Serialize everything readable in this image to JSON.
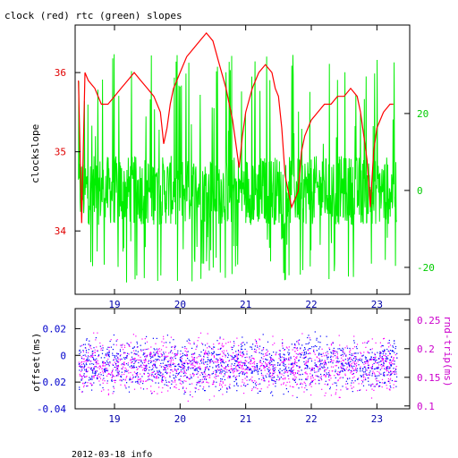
{
  "chart_data": [
    {
      "type": "line",
      "title": "clock (red) rtc (green) slopes",
      "xlabel": "",
      "ylabel": "clockslope",
      "xlim": [
        18.4,
        23.5
      ],
      "x_ticks": [
        "19",
        "20",
        "21",
        "22",
        "23"
      ],
      "y_left": {
        "lim": [
          33.2,
          36.6
        ],
        "ticks": [
          "34",
          "35",
          "36"
        ],
        "color": "#e00000"
      },
      "y_right": {
        "lim": [
          -27,
          43
        ],
        "ticks": [
          "-20",
          "0",
          "20"
        ],
        "color": "#00cc00"
      },
      "series": [
        {
          "color": "#ff0000",
          "axis": "left",
          "x": [
            18.45,
            18.5,
            18.55,
            18.6,
            18.7,
            18.8,
            18.9,
            19.0,
            19.1,
            19.2,
            19.3,
            19.4,
            19.5,
            19.6,
            19.7,
            19.75,
            19.8,
            19.85,
            19.9,
            19.95,
            20.0,
            20.1,
            20.2,
            20.3,
            20.4,
            20.5,
            20.6,
            20.7,
            20.75,
            20.8,
            20.85,
            20.9,
            20.95,
            21.0,
            21.1,
            21.2,
            21.3,
            21.4,
            21.45,
            21.5,
            21.55,
            21.6,
            21.7,
            21.8,
            21.85,
            21.9,
            21.95,
            22.0,
            22.1,
            22.2,
            22.3,
            22.4,
            22.5,
            22.6,
            22.7,
            22.75,
            22.8,
            22.85,
            22.9,
            22.95,
            23.0,
            23.1,
            23.2,
            23.25
          ],
          "y": [
            35.9,
            34.1,
            36.0,
            35.9,
            35.8,
            35.6,
            35.6,
            35.7,
            35.8,
            35.9,
            36.0,
            35.9,
            35.8,
            35.7,
            35.5,
            35.1,
            35.3,
            35.6,
            35.8,
            35.9,
            36.0,
            36.2,
            36.3,
            36.4,
            36.5,
            36.4,
            36.1,
            35.8,
            35.6,
            35.4,
            35.1,
            34.8,
            35.2,
            35.5,
            35.8,
            36.0,
            36.1,
            36.0,
            35.8,
            35.7,
            35.3,
            34.7,
            34.3,
            34.5,
            35.0,
            35.2,
            35.3,
            35.4,
            35.5,
            35.6,
            35.6,
            35.7,
            35.7,
            35.8,
            35.7,
            35.5,
            35.2,
            34.9,
            34.3,
            35.0,
            35.3,
            35.5,
            35.6,
            35.6
          ]
        },
        {
          "color": "#00ee00",
          "axis": "right",
          "x_range": [
            18.45,
            23.3
          ],
          "y_typical_range": [
            -10,
            10
          ],
          "y_extremes": [
            -24,
            36
          ]
        }
      ]
    },
    {
      "type": "scatter",
      "title": "",
      "xlabel": "",
      "ylabel": "offset(ms)",
      "y2label": "rnd-trip(ms)",
      "xlim": [
        18.4,
        23.5
      ],
      "x_ticks": [
        "19",
        "20",
        "21",
        "22",
        "23"
      ],
      "y_left": {
        "lim": [
          -0.04,
          0.035
        ],
        "ticks": [
          "-0.04",
          "-0.02",
          "0",
          "0.02"
        ],
        "color": "#0000cc"
      },
      "y_right": {
        "lim": [
          0.095,
          0.27
        ],
        "ticks": [
          "0.1",
          "0.15",
          "0.2",
          "0.25"
        ],
        "color": "#cc00cc"
      },
      "series": [
        {
          "color": "#0000ff",
          "axis": "left",
          "x_range": [
            18.45,
            23.3
          ],
          "y_typical_range": [
            -0.03,
            0.015
          ]
        },
        {
          "color": "#ff00ff",
          "axis": "right",
          "x_range": [
            18.45,
            23.3
          ],
          "y_typical_range": [
            0.11,
            0.22
          ]
        }
      ]
    }
  ],
  "footer": {
    "text": "2012-03-18 info"
  }
}
